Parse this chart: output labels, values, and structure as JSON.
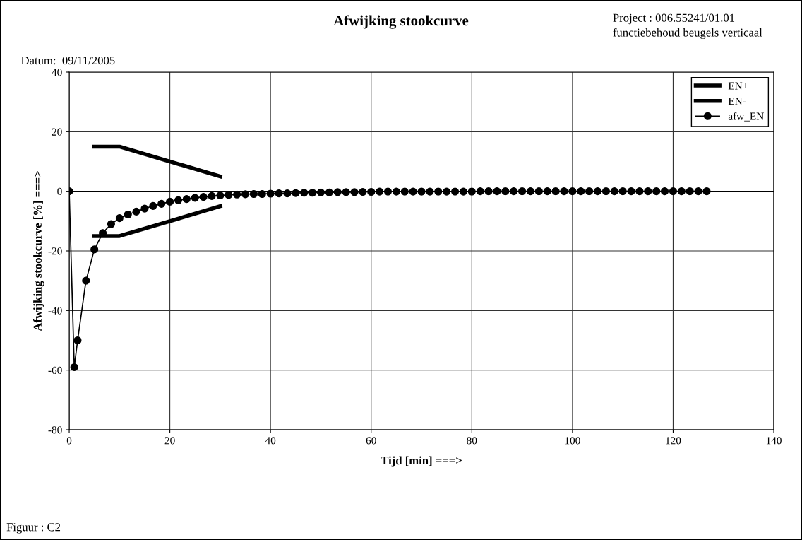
{
  "chart_data": {
    "type": "line",
    "title": "Afwijking stookcurve",
    "xlabel": "Tijd [min] ===>",
    "ylabel": "Afwijking stookcurve [%] ===>",
    "annotations": [
      "Project : 006.55241/01.01",
      "functiebehoud beugels verticaal",
      "Datum:  09/11/2005",
      "Figuur : C2"
    ],
    "xlim": [
      0,
      140
    ],
    "xticks": [
      0,
      20,
      40,
      60,
      80,
      100,
      120,
      140
    ],
    "ylim": [
      -80,
      40
    ],
    "yticks": [
      -80,
      -60,
      -40,
      -20,
      0,
      20,
      40
    ],
    "grid": true,
    "legend": "top right",
    "series": [
      {
        "name": "EN+",
        "color": "#000000",
        "marker": "none",
        "x": [
          5,
          10,
          30
        ],
        "values": [
          15,
          15,
          5
        ]
      },
      {
        "name": "EN-",
        "color": "#000000",
        "marker": "none",
        "x": [
          5,
          10,
          30
        ],
        "values": [
          -15,
          -15,
          -5
        ]
      },
      {
        "name": "afw_EN",
        "color": "#000000",
        "marker": "circle",
        "x": [
          0,
          1,
          1.67,
          3.33,
          5,
          6.67,
          8.33,
          10,
          11.67,
          13.33,
          15,
          16.67,
          18.33,
          20,
          21.67,
          23.33,
          25,
          26.67,
          28.33,
          30,
          31.67,
          33.33,
          35,
          36.67,
          38.33,
          40,
          41.67,
          43.33,
          45,
          46.67,
          48.33,
          50,
          51.67,
          53.33,
          55,
          56.67,
          58.33,
          60,
          61.67,
          63.33,
          65,
          66.67,
          68.33,
          70,
          71.67,
          73.33,
          75,
          76.67,
          78.33,
          80,
          81.67,
          83.33,
          85,
          86.67,
          88.33,
          90,
          91.67,
          93.33,
          95,
          96.67,
          98.33,
          100,
          101.67,
          103.33,
          105,
          106.67,
          108.33,
          110,
          111.67,
          113.33,
          115,
          116.67,
          118.33,
          120,
          121.67,
          123.33,
          125,
          126.67
        ],
        "values": [
          0,
          -59,
          -50,
          -30,
          -19.5,
          -14,
          -11,
          -9,
          -7.8,
          -6.8,
          -5.8,
          -4.9,
          -4.2,
          -3.5,
          -3.0,
          -2.6,
          -2.2,
          -1.9,
          -1.6,
          -1.4,
          -1.2,
          -1.1,
          -1.0,
          -0.9,
          -0.9,
          -0.8,
          -0.7,
          -0.7,
          -0.6,
          -0.5,
          -0.5,
          -0.4,
          -0.4,
          -0.3,
          -0.3,
          -0.3,
          -0.2,
          -0.2,
          -0.1,
          -0.1,
          -0.1,
          -0.1,
          -0.1,
          -0.1,
          -0.1,
          -0.1,
          -0.1,
          -0.1,
          -0.1,
          -0.1,
          0,
          0,
          0,
          0,
          0,
          0,
          0,
          0,
          0,
          0,
          0,
          0,
          0,
          0,
          0,
          0,
          0,
          0,
          0,
          0,
          0,
          0,
          0,
          0,
          0,
          0,
          0,
          0
        ]
      }
    ]
  }
}
